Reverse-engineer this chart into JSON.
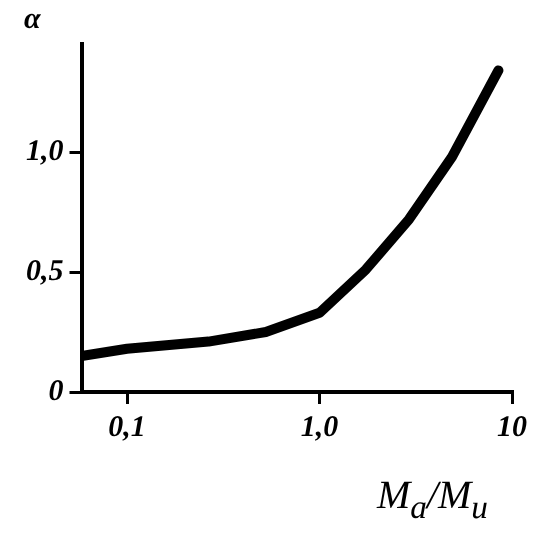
{
  "chart_data": {
    "type": "line",
    "xlabel": "M$_{a}$/M$_{u}$",
    "ylabel": "α",
    "x": [
      0.058,
      0.1,
      0.265,
      0.526,
      1.0,
      1.74,
      2.92,
      4.88,
      8.5
    ],
    "series": [
      {
        "color": "#000000",
        "values": [
          0.15,
          0.18,
          0.21,
          0.25,
          0.33,
          0.51,
          0.72,
          0.98,
          1.34
        ]
      }
    ],
    "log": "x",
    "xlim": [
      0.058,
      10
    ],
    "xticks": [
      {
        "value": 0.1,
        "label": "0,1"
      },
      {
        "value": 1,
        "label": "1,0"
      },
      {
        "value": 10,
        "label": "10"
      }
    ],
    "ylim": [
      0,
      1.45
    ],
    "yticks": [
      {
        "value": 0,
        "label": "0"
      },
      {
        "value": 0.5,
        "label": "0,5"
      },
      {
        "value": 1,
        "label": "1,0"
      }
    ],
    "grid": false,
    "legend": false,
    "marker": "none",
    "line_style": "solid"
  }
}
